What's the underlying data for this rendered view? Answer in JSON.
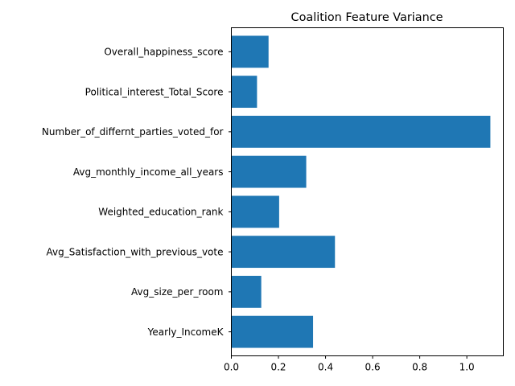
{
  "chart_data": {
    "type": "bar",
    "orientation": "horizontal",
    "title": "Coalition Feature Variance",
    "xlabel": "",
    "ylabel": "",
    "xlim": [
      0,
      1.155
    ],
    "xticks": [
      "0.0",
      "0.2",
      "0.4",
      "0.6",
      "0.8",
      "1.0"
    ],
    "grid": false,
    "bar_color": "#1f77b4",
    "categories": [
      "Overall_happiness_score",
      "Political_interest_Total_Score",
      "Number_of_differnt_parties_voted_for",
      "Avg_monthly_income_all_years",
      "Weighted_education_rank",
      "Avg_Satisfaction_with_previous_vote",
      "Avg_size_per_room",
      "Yearly_IncomeK"
    ],
    "values": [
      0.158,
      0.109,
      1.1,
      0.318,
      0.203,
      0.44,
      0.127,
      0.347
    ]
  }
}
